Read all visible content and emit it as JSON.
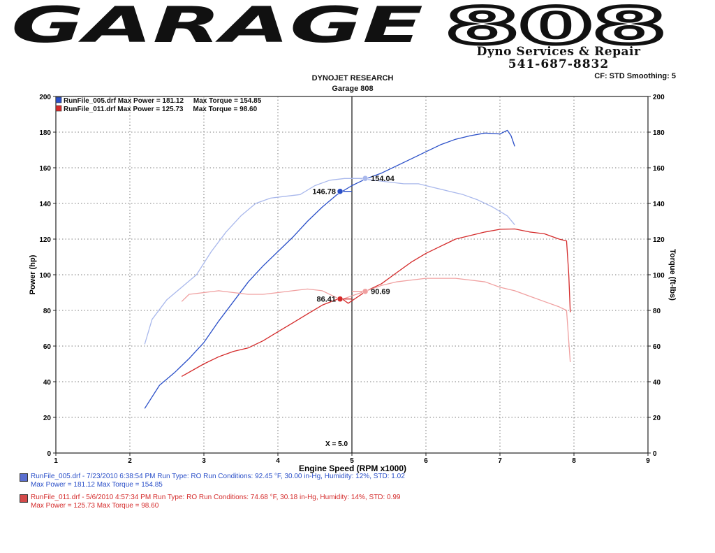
{
  "header": {
    "logo_text": "GARAGE",
    "logo_number": "808",
    "subtitle": "Dyno Services & Repair",
    "phone": "541-687-8832",
    "cf_info": "CF: STD  Smoothing: 5"
  },
  "chart_title": "DYNOJET RESEARCH",
  "chart_subtitle": "Garage 808",
  "legend": [
    {
      "text": "RunFile_005.drf Max Power = 181.12     Max Torque = 154.85"
    },
    {
      "text": "RunFile_011.drf Max Power = 125.73     Max Torque = 98.60"
    }
  ],
  "footer": [
    {
      "line1": "RunFile_005.drf - 7/23/2010 6:38:54 PM  Run Type: RO  Run Conditions: 92.45 °F, 30.00 in-Hg,  Humidity:  12%, STD: 1.02",
      "line2": "Max Power = 181.12  Max Torque = 154.85"
    },
    {
      "line1": "RunFile_011.drf - 5/6/2010 4:57:34 PM  Run Type: RO  Run Conditions: 74.68 °F, 30.18 in-Hg,  Humidity:  14%, STD: 0.99",
      "line2": "Max Power = 125.73  Max Torque = 98.60"
    }
  ],
  "colors": {
    "run005_power": "#2a4fc8",
    "run005_torque": "#a9b8ec",
    "run011_power": "#d42a2a",
    "run011_torque": "#f0a0a0",
    "grid": "#555555"
  },
  "chart_data": {
    "type": "line",
    "xlabel": "Engine Speed (RPM x1000)",
    "ylabel": "Power (hp)",
    "y2label": "Torque (ft-lbs)",
    "xlim": [
      1,
      9
    ],
    "ylim": [
      0,
      200
    ],
    "y2lim": [
      0,
      200
    ],
    "xticks": [
      1,
      2,
      3,
      4,
      5,
      6,
      7,
      8,
      9
    ],
    "yticks": [
      0,
      20,
      40,
      60,
      80,
      100,
      120,
      140,
      160,
      180,
      200
    ],
    "grid": true,
    "legend_position": "top-left",
    "cursor": {
      "x": 5.0,
      "label": "X = 5.0"
    },
    "series": [
      {
        "name": "RunFile_005.drf",
        "colorKey": "run005_power",
        "x": [
          2.2,
          2.4,
          2.6,
          2.8,
          3.0,
          3.2,
          3.4,
          3.6,
          3.8,
          4.0,
          4.2,
          4.4,
          4.6,
          4.8,
          5.0,
          5.2,
          5.4,
          5.6,
          5.8,
          6.0,
          6.2,
          6.4,
          6.6,
          6.8,
          7.0,
          7.1,
          7.15,
          7.2
        ],
        "y": [
          25,
          38,
          45,
          53,
          62,
          74,
          85,
          96,
          105,
          113,
          121,
          130,
          138,
          145,
          150,
          154,
          157,
          161,
          165,
          169,
          173,
          176,
          178,
          179.5,
          179,
          181,
          178,
          172
        ]
      },
      {
        "name": "RunFile_005.drf",
        "colorKey": "run005_torque",
        "x": [
          2.2,
          2.3,
          2.5,
          2.7,
          2.9,
          3.1,
          3.3,
          3.5,
          3.7,
          3.9,
          4.1,
          4.3,
          4.5,
          4.7,
          4.9,
          5.1,
          5.3,
          5.5,
          5.7,
          5.9,
          6.1,
          6.3,
          6.5,
          6.7,
          6.9,
          7.1,
          7.2
        ],
        "y": [
          61,
          75,
          86,
          93,
          100,
          113,
          124,
          133,
          140,
          143,
          144,
          145,
          150,
          153,
          154,
          154,
          153,
          152,
          151,
          151,
          149,
          147,
          145,
          142,
          138,
          133,
          128
        ]
      },
      {
        "name": "RunFile_011.drf",
        "colorKey": "run011_power",
        "x": [
          2.7,
          3.0,
          3.2,
          3.4,
          3.6,
          3.8,
          4.0,
          4.2,
          4.4,
          4.6,
          4.85,
          4.95,
          5.2,
          5.4,
          5.6,
          5.8,
          6.0,
          6.2,
          6.4,
          6.6,
          6.8,
          7.0,
          7.2,
          7.4,
          7.6,
          7.8,
          7.9,
          7.93,
          7.95
        ],
        "y": [
          43,
          50,
          54,
          57,
          59,
          63,
          68,
          73,
          78,
          83,
          87,
          84,
          91,
          95,
          101,
          107,
          112,
          116,
          120,
          122,
          124,
          125.5,
          125.7,
          124,
          123,
          120,
          119,
          100,
          79
        ]
      },
      {
        "name": "RunFile_011.drf",
        "colorKey": "run011_torque",
        "x": [
          2.7,
          2.8,
          3.0,
          3.2,
          3.4,
          3.6,
          3.8,
          4.0,
          4.2,
          4.4,
          4.6,
          4.85,
          5.2,
          5.4,
          5.6,
          5.8,
          6.0,
          6.2,
          6.4,
          6.6,
          6.8,
          7.0,
          7.2,
          7.4,
          7.6,
          7.8,
          7.9,
          7.95
        ],
        "y": [
          85,
          89,
          90,
          91,
          90,
          89,
          89,
          90,
          91,
          92,
          91,
          86,
          91,
          94,
          96,
          97,
          98,
          98,
          98,
          97,
          96,
          93,
          91,
          88,
          85,
          82,
          80,
          51
        ]
      }
    ],
    "markers": [
      {
        "x": 4.84,
        "y": 146.78,
        "label": "146.78",
        "colorKey": "run005_power",
        "side": "left"
      },
      {
        "x": 5.18,
        "y": 154.04,
        "label": "154.04",
        "colorKey": "run005_torque",
        "side": "right"
      },
      {
        "x": 4.84,
        "y": 86.41,
        "label": "86.41",
        "colorKey": "run011_power",
        "side": "left"
      },
      {
        "x": 5.18,
        "y": 90.69,
        "label": "90.69",
        "colorKey": "run011_torque",
        "side": "right"
      }
    ]
  }
}
